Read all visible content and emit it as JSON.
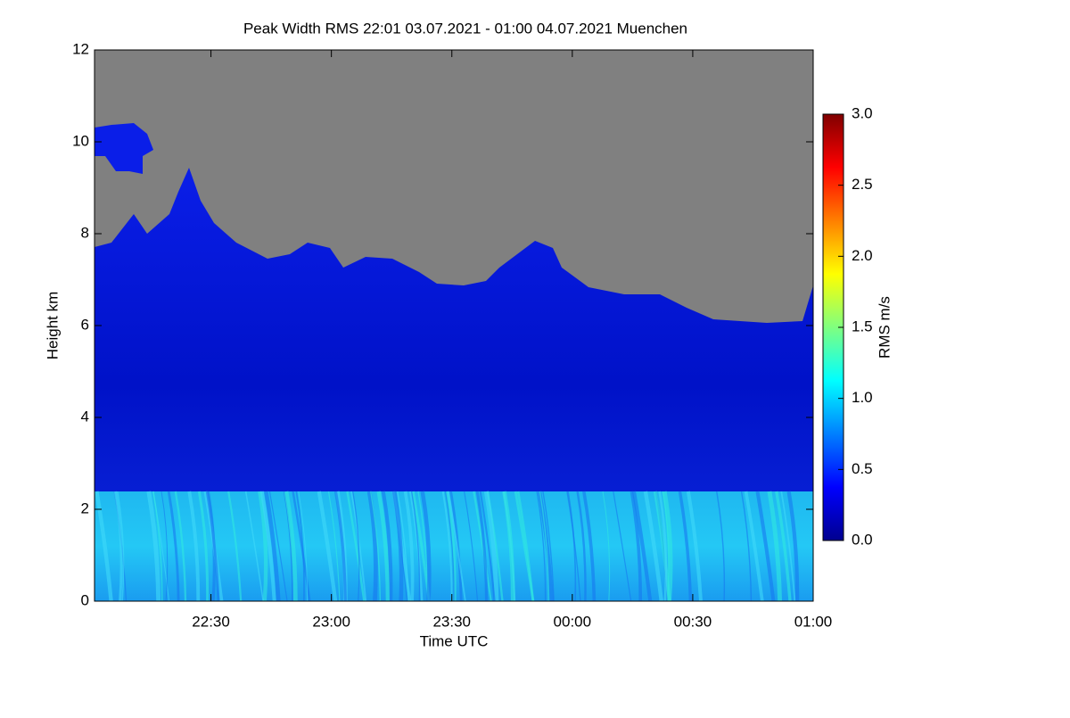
{
  "chart_data": {
    "type": "heatmap",
    "title": "Peak Width RMS   22:01 03.07.2021 - 01:00 04.07.2021 Muenchen",
    "x_label": "Time UTC",
    "y_label": "Height km",
    "colorbar_label": "RMS m/s",
    "xlim": [
      22.0167,
      25.0
    ],
    "xticks": [
      {
        "value": 22.5,
        "label": "22:30"
      },
      {
        "value": 23.0,
        "label": "23:00"
      },
      {
        "value": 23.5,
        "label": "23:30"
      },
      {
        "value": 24.0,
        "label": "00:00"
      },
      {
        "value": 24.5,
        "label": "00:30"
      },
      {
        "value": 25.0,
        "label": "01:00"
      }
    ],
    "ylim": [
      0,
      12
    ],
    "yticks": [
      0,
      2,
      4,
      6,
      8,
      10,
      12
    ],
    "clim": [
      0,
      3
    ],
    "cticks": [
      {
        "value": 0,
        "label": "0.0"
      },
      {
        "value": 0.5,
        "label": "0.5"
      },
      {
        "value": 1,
        "label": "1.0"
      },
      {
        "value": 1.5,
        "label": "1.5"
      },
      {
        "value": 2,
        "label": "2.0"
      },
      {
        "value": 2.5,
        "label": "2.5"
      },
      {
        "value": 3,
        "label": "3.0"
      }
    ],
    "colormap": "jet"
  }
}
